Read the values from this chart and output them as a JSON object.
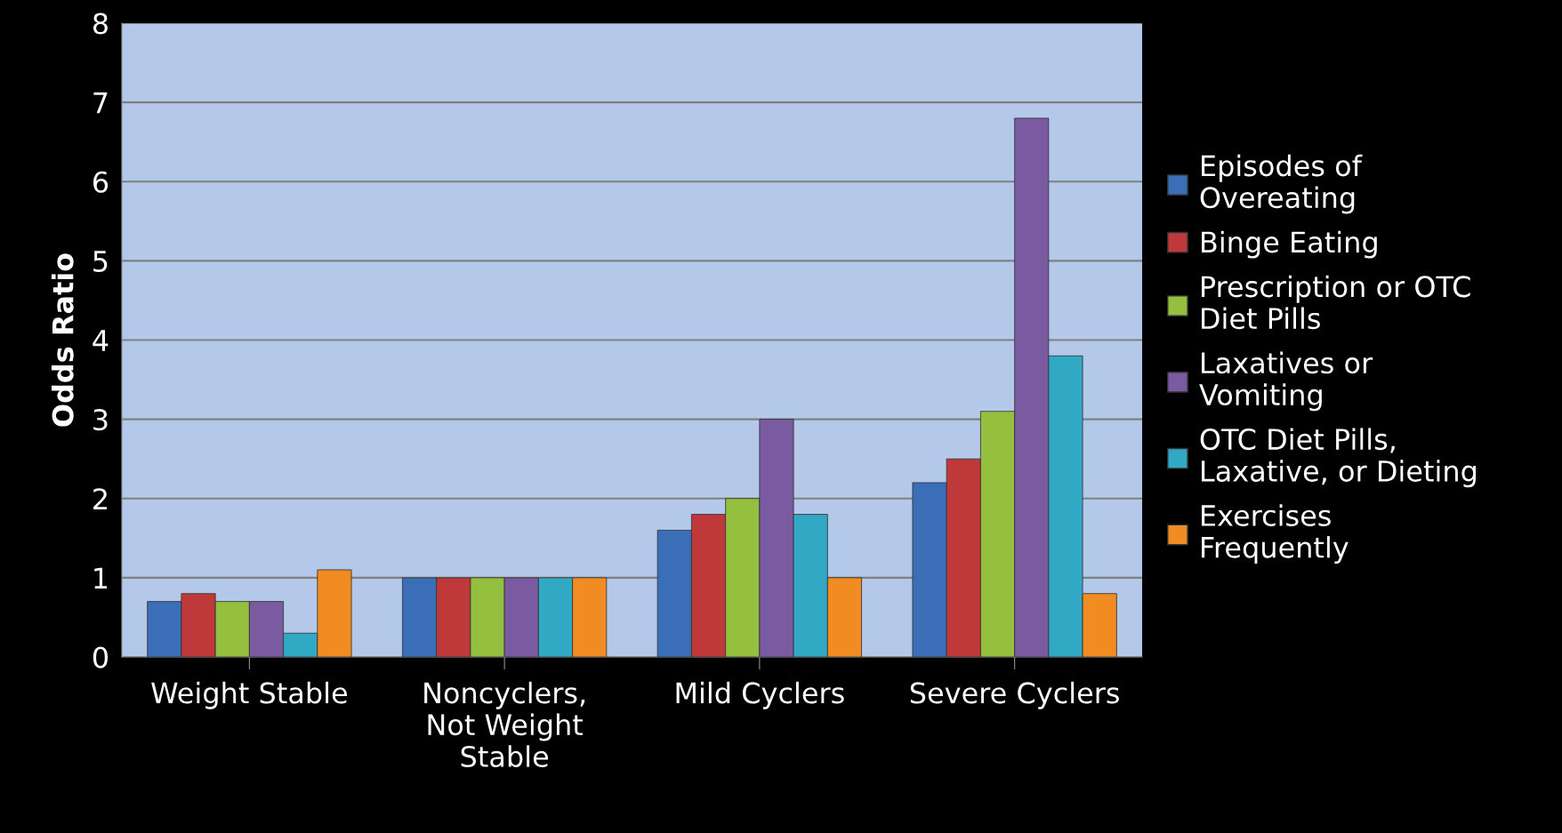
{
  "chart_data": {
    "type": "bar",
    "ylabel": "Odds Ratio",
    "categories": [
      "Weight Stable",
      "Noncyclers,\nNot Weight\nStable",
      "Mild Cyclers",
      "Severe Cyclers"
    ],
    "series": [
      {
        "name": "Episodes of\nOvereating",
        "color": "#3a6fb8",
        "values": [
          0.7,
          1.0,
          1.6,
          2.2
        ]
      },
      {
        "name": "Binge Eating",
        "color": "#c0393a",
        "values": [
          0.8,
          1.0,
          1.8,
          2.5
        ]
      },
      {
        "name": "Prescription or OTC\nDiet Pills",
        "color": "#94bf3f",
        "values": [
          0.7,
          1.0,
          2.0,
          3.1
        ]
      },
      {
        "name": "Laxatives or\nVomiting",
        "color": "#7a5aa0",
        "values": [
          0.7,
          1.0,
          3.0,
          6.8
        ]
      },
      {
        "name": "OTC Diet Pills,\nLaxative, or Dieting",
        "color": "#32a9c4",
        "values": [
          0.3,
          1.0,
          1.8,
          3.8
        ]
      },
      {
        "name": "Exercises\nFrequently",
        "color": "#f08c22",
        "values": [
          1.1,
          1.0,
          1.0,
          0.8
        ]
      }
    ],
    "ylim": [
      0,
      8
    ],
    "yticks": [
      0,
      1,
      2,
      3,
      4,
      5,
      6,
      7,
      8
    ],
    "grid": "y",
    "legend": "right"
  }
}
